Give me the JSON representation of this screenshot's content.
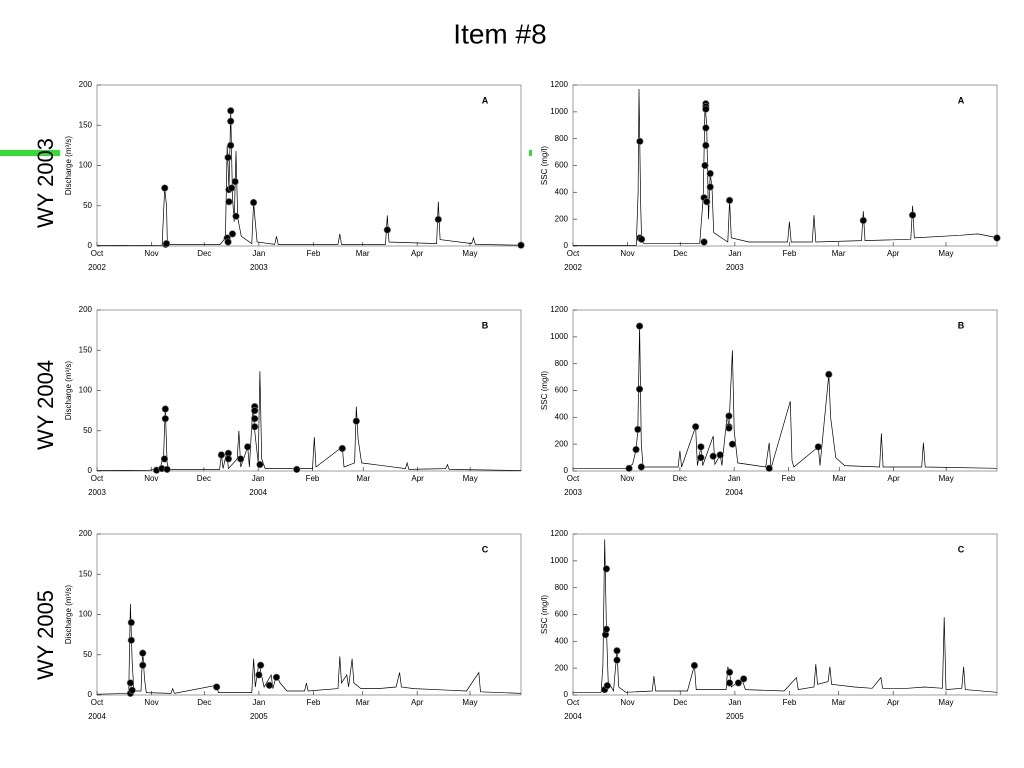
{
  "title": "Item #8",
  "row_labels": [
    "WY 2003",
    "WY 2004",
    "WY 2005"
  ],
  "chart_data": [
    {
      "type": "line",
      "panel": "A",
      "ylabel": "Discharge (m³/s)",
      "ylim": [
        0,
        200
      ],
      "yticks": [
        0,
        50,
        100,
        150,
        200
      ],
      "xlim": [
        0,
        241
      ],
      "xticks": [
        {
          "value": 0,
          "label": "Oct"
        },
        {
          "value": 31,
          "label": "Nov"
        },
        {
          "value": 61,
          "label": "Dec"
        },
        {
          "value": 92,
          "label": "Jan"
        },
        {
          "value": 123,
          "label": "Feb"
        },
        {
          "value": 151,
          "label": "Mar"
        },
        {
          "value": 182,
          "label": "Apr"
        },
        {
          "value": 212,
          "label": "May"
        }
      ],
      "year_labels": [
        {
          "value": 0,
          "label": "2002"
        },
        {
          "value": 92,
          "label": "2003"
        }
      ],
      "x": [
        0,
        37,
        38.5,
        39.5,
        40,
        70,
        73,
        74,
        75,
        76,
        77,
        78,
        79,
        80,
        82,
        88,
        89,
        90,
        91,
        101,
        102,
        103,
        137,
        138,
        139,
        164,
        165,
        166,
        193,
        194,
        195,
        213,
        214,
        215,
        241
      ],
      "values": [
        0.5,
        1,
        72,
        50,
        2,
        2,
        10,
        125,
        70,
        168,
        60,
        30,
        118,
        35,
        12,
        3,
        54,
        30,
        5,
        2,
        12,
        2,
        2,
        15,
        2,
        2,
        38,
        5,
        3,
        55,
        8,
        3,
        10,
        2,
        1
      ],
      "points": {
        "x": [
          39,
          38.5,
          39.5,
          74,
          74.5,
          74.5,
          75,
          75,
          76,
          76,
          76,
          76.5,
          77,
          78.5,
          79,
          89,
          165,
          194,
          241
        ],
        "values": [
          2,
          72,
          3,
          10,
          5,
          110,
          70,
          55,
          168,
          155,
          125,
          72,
          15,
          80,
          37,
          54,
          20,
          33,
          1
        ]
      }
    },
    {
      "type": "line",
      "panel": "A",
      "ylabel": "SSC (mg/l)",
      "ylim": [
        0,
        1200
      ],
      "yticks": [
        0,
        200,
        400,
        600,
        800,
        1000,
        1200
      ],
      "xlim": [
        0,
        241
      ],
      "xticks": [
        {
          "value": 0,
          "label": "Oct"
        },
        {
          "value": 31,
          "label": "Nov"
        },
        {
          "value": 61,
          "label": "Dec"
        },
        {
          "value": 92,
          "label": "Jan"
        },
        {
          "value": 123,
          "label": "Feb"
        },
        {
          "value": 151,
          "label": "Mar"
        },
        {
          "value": 182,
          "label": "Apr"
        },
        {
          "value": 212,
          "label": "May"
        }
      ],
      "year_labels": [
        {
          "value": 0,
          "label": "2002"
        },
        {
          "value": 92,
          "label": "2003"
        }
      ],
      "x": [
        0,
        36,
        37,
        37.5,
        38.5,
        39,
        40,
        72,
        74,
        75,
        76,
        77,
        78,
        79,
        80,
        88,
        89,
        90,
        100,
        122,
        123,
        124,
        136,
        137,
        138,
        164,
        165,
        166,
        192,
        193,
        194,
        220,
        230,
        238,
        241
      ],
      "values": [
        5,
        5,
        400,
        1170,
        300,
        50,
        20,
        20,
        360,
        1060,
        900,
        200,
        540,
        440,
        100,
        30,
        340,
        60,
        30,
        30,
        180,
        30,
        30,
        230,
        30,
        40,
        260,
        40,
        50,
        300,
        60,
        80,
        90,
        70,
        60
      ],
      "points": {
        "x": [
          38,
          38,
          39,
          74.5,
          74.5,
          75,
          75.5,
          75.5,
          75.5,
          75.5,
          75.5,
          76,
          78,
          78,
          89,
          165,
          193,
          241
        ],
        "values": [
          780,
          60,
          50,
          30,
          360,
          600,
          1060,
          1040,
          1020,
          880,
          750,
          330,
          540,
          440,
          340,
          190,
          230,
          60
        ]
      }
    },
    {
      "type": "line",
      "panel": "B",
      "ylabel": "Discharge (m³/s)",
      "ylim": [
        0,
        200
      ],
      "yticks": [
        0,
        50,
        100,
        150,
        200
      ],
      "xlim": [
        0,
        242
      ],
      "xticks": [
        {
          "value": 0,
          "label": "Oct"
        },
        {
          "value": 31,
          "label": "Nov"
        },
        {
          "value": 61,
          "label": "Dec"
        },
        {
          "value": 92,
          "label": "Jan"
        },
        {
          "value": 123,
          "label": "Feb"
        },
        {
          "value": 152,
          "label": "Mar"
        },
        {
          "value": 183,
          "label": "Apr"
        },
        {
          "value": 213,
          "label": "May"
        }
      ],
      "year_labels": [
        {
          "value": 0,
          "label": "2003"
        },
        {
          "value": 92,
          "label": "2004"
        }
      ],
      "x": [
        0,
        30,
        36,
        38,
        39,
        40,
        41,
        70,
        71,
        72,
        74,
        75,
        80,
        81,
        82,
        86,
        87,
        89,
        90,
        92,
        93,
        94,
        96,
        123,
        124,
        125,
        140,
        141,
        147,
        148,
        149,
        151,
        176,
        177,
        178,
        199,
        200,
        201,
        242
      ],
      "values": [
        0.5,
        1,
        3,
        20,
        78,
        10,
        2,
        2,
        20,
        3,
        24,
        3,
        15,
        50,
        5,
        30,
        5,
        82,
        50,
        10,
        124,
        15,
        3,
        3,
        42,
        5,
        30,
        5,
        10,
        80,
        40,
        10,
        3,
        10,
        2,
        3,
        8,
        2,
        0.5
      ],
      "points": {
        "x": [
          34,
          37,
          38.5,
          39,
          39,
          40,
          71,
          75,
          75,
          82,
          86,
          90,
          90,
          90,
          90,
          93,
          114,
          140,
          148
        ],
        "values": [
          1,
          3,
          15,
          65,
          77,
          2,
          20,
          22,
          15,
          15,
          30,
          80,
          75,
          65,
          55,
          8,
          2,
          28,
          62
        ]
      }
    },
    {
      "type": "line",
      "panel": "B",
      "ylabel": "SSC (mg/l)",
      "ylim": [
        0,
        1200
      ],
      "yticks": [
        0,
        200,
        400,
        600,
        800,
        1000,
        1200
      ],
      "xlim": [
        0,
        242
      ],
      "xticks": [
        {
          "value": 0,
          "label": "Oct"
        },
        {
          "value": 31,
          "label": "Nov"
        },
        {
          "value": 61,
          "label": "Dec"
        },
        {
          "value": 92,
          "label": "Jan"
        },
        {
          "value": 123,
          "label": "Feb"
        },
        {
          "value": 152,
          "label": "Mar"
        },
        {
          "value": 183,
          "label": "Apr"
        },
        {
          "value": 213,
          "label": "May"
        }
      ],
      "year_labels": [
        {
          "value": 0,
          "label": "2003"
        },
        {
          "value": 92,
          "label": "2004"
        }
      ],
      "x": [
        0,
        30,
        34,
        36,
        37,
        38,
        39,
        40,
        60,
        61,
        62,
        70,
        71,
        73,
        74,
        80,
        81,
        84,
        85,
        88,
        89,
        91,
        92,
        94,
        110,
        112,
        113,
        124,
        125,
        126,
        140,
        141,
        146,
        147,
        150,
        155,
        175,
        176,
        177,
        199,
        200,
        201,
        242
      ],
      "values": [
        20,
        20,
        50,
        160,
        300,
        1080,
        200,
        30,
        30,
        150,
        30,
        330,
        40,
        180,
        40,
        260,
        50,
        120,
        40,
        420,
        320,
        900,
        300,
        60,
        30,
        210,
        20,
        520,
        80,
        30,
        180,
        40,
        720,
        400,
        100,
        40,
        30,
        280,
        30,
        30,
        210,
        30,
        20
      ],
      "points": {
        "x": [
          32,
          36,
          37,
          38,
          38,
          39,
          70,
          73,
          73,
          80,
          84,
          89,
          89,
          89,
          91,
          112,
          140,
          146
        ],
        "values": [
          20,
          160,
          310,
          1080,
          610,
          30,
          330,
          180,
          100,
          110,
          120,
          410,
          330,
          320,
          200,
          20,
          180,
          720
        ]
      }
    },
    {
      "type": "line",
      "panel": "C",
      "ylabel": "Discharge (m³/s)",
      "ylim": [
        0,
        200
      ],
      "yticks": [
        0,
        50,
        100,
        150,
        200
      ],
      "xlim": [
        0,
        241
      ],
      "xticks": [
        {
          "value": 0,
          "label": "Oct"
        },
        {
          "value": 31,
          "label": "Nov"
        },
        {
          "value": 61,
          "label": "Dec"
        },
        {
          "value": 92,
          "label": "Jan"
        },
        {
          "value": 123,
          "label": "Feb"
        },
        {
          "value": 151,
          "label": "Mar"
        },
        {
          "value": 182,
          "label": "Apr"
        },
        {
          "value": 212,
          "label": "May"
        }
      ],
      "year_labels": [
        {
          "value": 0,
          "label": "2004"
        },
        {
          "value": 92,
          "label": "2005"
        }
      ],
      "x": [
        0,
        18,
        19,
        20,
        21,
        25,
        26,
        27,
        28,
        42,
        43,
        44,
        68,
        69,
        88,
        89,
        90,
        92,
        93,
        95,
        99,
        100,
        102,
        104,
        108,
        118,
        119,
        120,
        137,
        138,
        139,
        142,
        143,
        145,
        146,
        150,
        160,
        170,
        172,
        173,
        180,
        200,
        210,
        217,
        218,
        241
      ],
      "values": [
        1,
        2,
        113,
        40,
        5,
        5,
        55,
        20,
        3,
        2,
        8,
        2,
        12,
        3,
        3,
        45,
        10,
        40,
        30,
        10,
        25,
        8,
        25,
        15,
        5,
        5,
        15,
        5,
        8,
        48,
        15,
        25,
        10,
        45,
        15,
        8,
        8,
        10,
        28,
        10,
        8,
        6,
        5,
        28,
        4,
        2
      ],
      "points": {
        "x": [
          19,
          19,
          19.5,
          19.5,
          20,
          26,
          26,
          68,
          92,
          93,
          98,
          102
        ],
        "values": [
          2,
          15,
          90,
          68,
          6,
          52,
          37,
          10,
          25,
          37,
          12,
          22
        ]
      }
    },
    {
      "type": "line",
      "panel": "C",
      "ylabel": "SSC (mg/l)",
      "ylim": [
        0,
        1200
      ],
      "yticks": [
        0,
        200,
        400,
        600,
        800,
        1000,
        1200
      ],
      "xlim": [
        0,
        241
      ],
      "xticks": [
        {
          "value": 0,
          "label": "Oct"
        },
        {
          "value": 31,
          "label": "Nov"
        },
        {
          "value": 61,
          "label": "Dec"
        },
        {
          "value": 92,
          "label": "Jan"
        },
        {
          "value": 123,
          "label": "Feb"
        },
        {
          "value": 151,
          "label": "Mar"
        },
        {
          "value": 182,
          "label": "Apr"
        },
        {
          "value": 212,
          "label": "May"
        }
      ],
      "year_labels": [
        {
          "value": 0,
          "label": "2004"
        },
        {
          "value": 92,
          "label": "2005"
        }
      ],
      "x": [
        0,
        16,
        17,
        18,
        19,
        20,
        23,
        25,
        26,
        30,
        45,
        46,
        47,
        65,
        69,
        70,
        87,
        88,
        89,
        90,
        96,
        98,
        120,
        127,
        128,
        137,
        138,
        139,
        145,
        146,
        147,
        160,
        170,
        175,
        176,
        190,
        200,
        210,
        211,
        212,
        221,
        222,
        223,
        241
      ],
      "values": [
        20,
        20,
        220,
        1160,
        500,
        100,
        30,
        330,
        60,
        20,
        30,
        140,
        30,
        30,
        220,
        40,
        40,
        210,
        170,
        60,
        120,
        40,
        30,
        130,
        40,
        60,
        230,
        80,
        100,
        210,
        80,
        60,
        50,
        130,
        50,
        50,
        60,
        50,
        580,
        40,
        50,
        210,
        40,
        20
      ],
      "points": {
        "x": [
          18,
          18.5,
          19,
          19,
          19.5,
          25,
          25,
          69,
          89,
          89,
          94,
          97
        ],
        "values": [
          40,
          450,
          490,
          940,
          70,
          330,
          260,
          220,
          170,
          90,
          90,
          120
        ]
      }
    }
  ]
}
